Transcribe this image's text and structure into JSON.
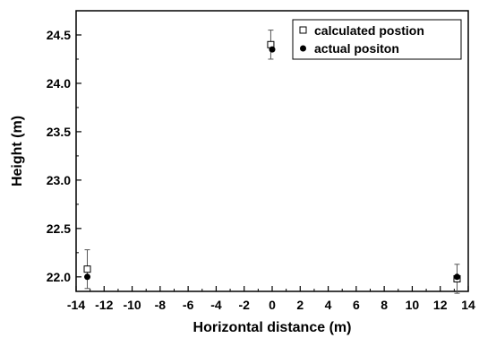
{
  "chart_data": {
    "type": "scatter",
    "xlabel": "Horizontal distance (m)",
    "ylabel": "Height (m)",
    "xlim": [
      -14,
      14
    ],
    "ylim": [
      21.85,
      24.75
    ],
    "x_ticks": [
      -14,
      -12,
      -10,
      -8,
      -6,
      -4,
      -2,
      0,
      2,
      4,
      6,
      8,
      10,
      12,
      14
    ],
    "y_ticks": [
      22.0,
      22.5,
      23.0,
      23.5,
      24.0,
      24.5
    ],
    "legend_position": "top-right",
    "grid": false,
    "series": [
      {
        "name": "calculated postion",
        "marker": "open-square",
        "color": "#000000",
        "points": [
          {
            "x": -13.2,
            "y": 22.08,
            "err": 0.2
          },
          {
            "x": -0.1,
            "y": 24.4,
            "err": 0.15
          },
          {
            "x": 13.2,
            "y": 21.98,
            "err": 0.15
          }
        ]
      },
      {
        "name": "actual positon",
        "marker": "filled-circle",
        "color": "#000000",
        "points": [
          {
            "x": -13.2,
            "y": 22.0
          },
          {
            "x": 0.0,
            "y": 24.35
          },
          {
            "x": 13.2,
            "y": 22.0
          }
        ]
      }
    ]
  }
}
